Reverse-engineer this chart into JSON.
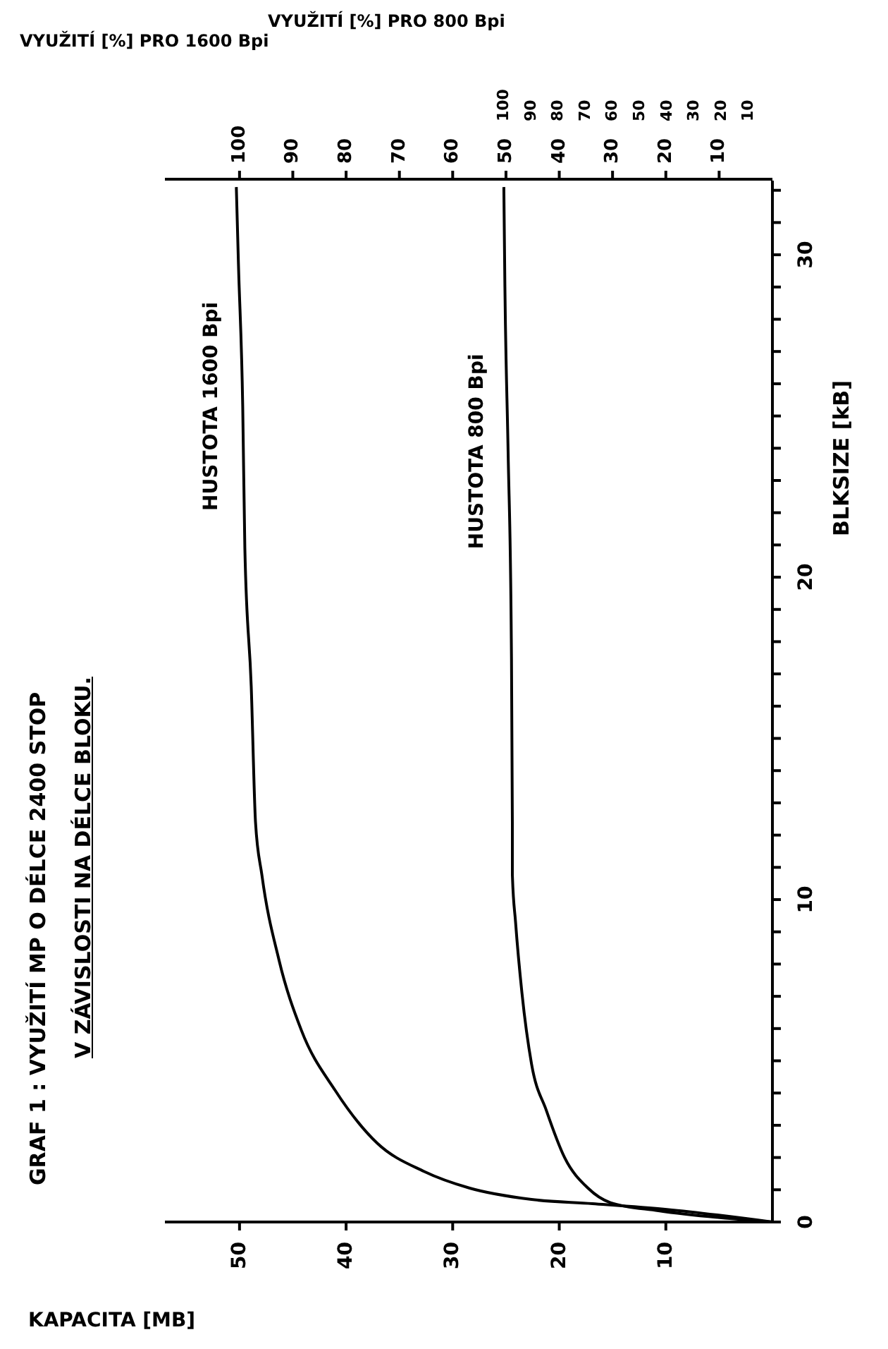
{
  "chart_data": {
    "type": "line",
    "title": "GRAF 1 : VYUŽITÍ MP O DÉLCE 2400 STOP",
    "subtitle": "V ZÁVISLOSTI NA DÉLCE BLOKU.",
    "xlabel": "KAPACITA [MB]",
    "ylabel": "BLKSIZE [kB]",
    "x2label": "VYUŽITÍ [%] PRO 1600 Bpi",
    "annotations": [
      "VYUŽITÍ [%] PRO 800 Bpi",
      "100",
      "90",
      "80",
      "70",
      "60",
      "50",
      "40",
      "30",
      "20",
      "10"
    ],
    "series": [
      {
        "name": "HUSTOTA 1600 Bpi",
        "color": "#000000",
        "x": [
          0,
          9.9,
          16.9,
          22.6,
          28.4,
          32.7,
          37.1,
          41.0,
          44.2,
          46.3,
          47.9,
          48.5,
          48.9,
          49.5,
          49.7,
          50.1,
          50.3
        ],
        "values": [
          0,
          0.39,
          0.57,
          0.7,
          1.05,
          1.57,
          2.45,
          4.07,
          5.95,
          8.13,
          10.76,
          12.4,
          16.6,
          20.9,
          25.3,
          29.7,
          32.1
        ]
      },
      {
        "name": "HUSTOTA 800 Bpi",
        "color": "#000000",
        "x": [
          0,
          10.7,
          15.2,
          17.3,
          19.5,
          21.2,
          22.6,
          23.5,
          24.1,
          24.4,
          24.4,
          24.5,
          24.8,
          25.1,
          25.2
        ],
        "values": [
          0,
          0.35,
          0.6,
          1.05,
          2.0,
          3.45,
          4.9,
          7.1,
          9.3,
          10.76,
          12.4,
          18.1,
          23.9,
          29.0,
          32.1
        ]
      }
    ],
    "xlim": [
      57,
      0
    ],
    "xticks": [
      10,
      20,
      30,
      40,
      50
    ],
    "x2lim": [
      114,
      0
    ],
    "x2ticks": [
      10,
      20,
      30,
      40,
      50,
      60,
      70,
      80,
      90,
      100
    ],
    "ylim": [
      0,
      32.3
    ],
    "yticks": [
      0,
      {
        "value": 1,
        "label": null
      },
      {
        "value": 2,
        "label": null
      },
      {
        "value": 3,
        "label": null
      },
      {
        "value": 4,
        "label": null
      },
      {
        "value": 5,
        "label": null
      },
      {
        "value": 6,
        "label": null
      },
      {
        "value": 7,
        "label": null
      },
      {
        "value": 8,
        "label": null
      },
      {
        "value": 9,
        "label": null
      },
      10,
      {
        "value": 11,
        "label": null
      },
      {
        "value": 12,
        "label": null
      },
      {
        "value": 13,
        "label": null
      },
      {
        "value": 14,
        "label": null
      },
      {
        "value": 15,
        "label": null
      },
      {
        "value": 16,
        "label": null
      },
      {
        "value": 17,
        "label": null
      },
      {
        "value": 18,
        "label": null
      },
      {
        "value": 19,
        "label": null
      },
      20,
      {
        "value": 21,
        "label": null
      },
      {
        "value": 22,
        "label": null
      },
      {
        "value": 23,
        "label": null
      },
      {
        "value": 24,
        "label": null
      },
      {
        "value": 25,
        "label": null
      },
      {
        "value": 26,
        "label": null
      },
      {
        "value": 27,
        "label": null
      },
      {
        "value": 28,
        "label": null
      },
      {
        "value": 29,
        "label": null
      },
      30,
      {
        "value": 31,
        "label": null
      },
      {
        "value": 32,
        "label": null
      }
    ]
  }
}
